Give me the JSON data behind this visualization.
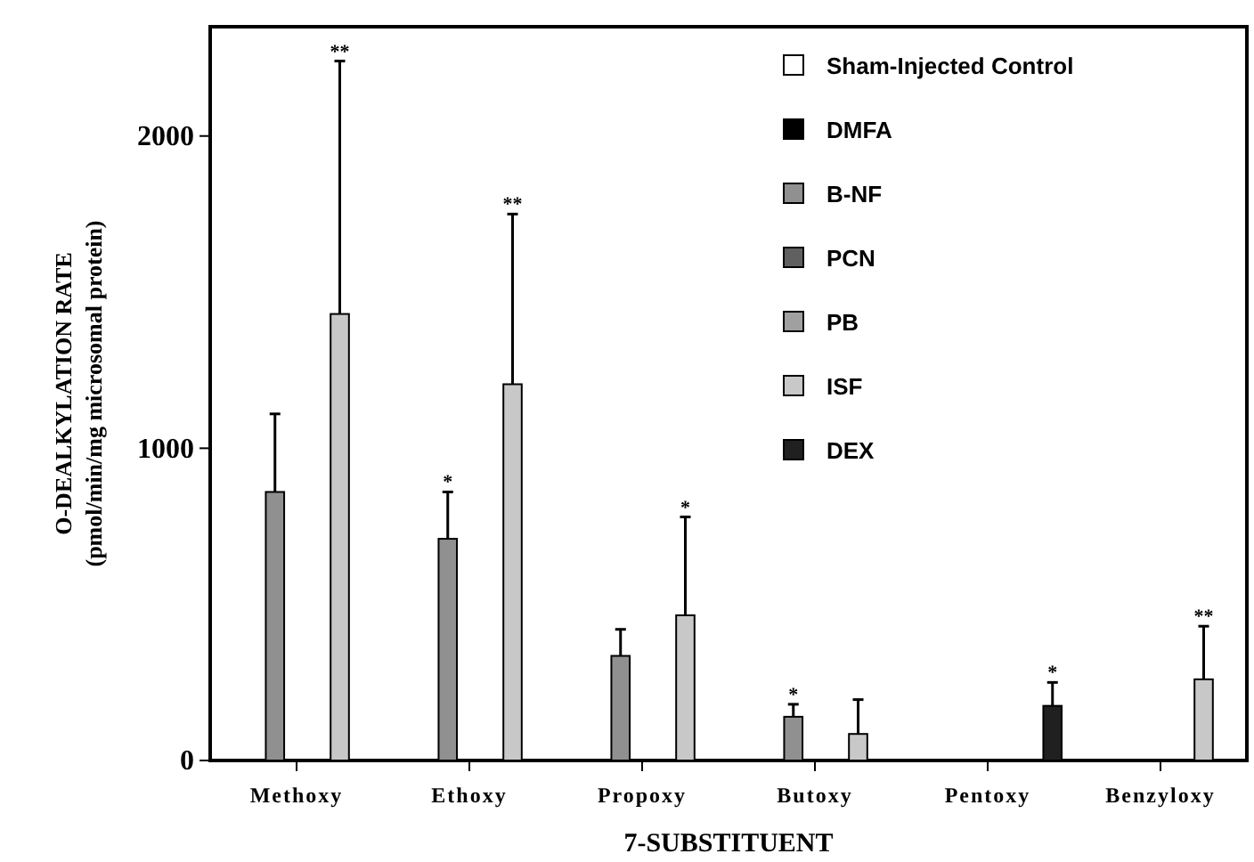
{
  "chart_data": {
    "type": "bar",
    "xlabel": "7-SUBSTITUENT",
    "ylabel": "O-DEALKYLATION RATE\n(pmol/min/mg microsomal protein)",
    "categories": [
      "Methoxy",
      "Ethoxy",
      "Propoxy",
      "Butoxy",
      "Pentoxy",
      "Benzyloxy"
    ],
    "series": [
      {
        "name": "Sham-Injected Control",
        "color": "#ffffff",
        "values": [
          0,
          0,
          0,
          0,
          0,
          0
        ]
      },
      {
        "name": "DMFA",
        "color": "#000000",
        "values": [
          0,
          0,
          0,
          0,
          0,
          0
        ]
      },
      {
        "name": "B-NF",
        "color": "#909090",
        "values": [
          860,
          710,
          335,
          140,
          0,
          0
        ],
        "errors": [
          [
            860,
            1110
          ],
          [
            710,
            860
          ],
          [
            335,
            420
          ],
          [
            140,
            180
          ],
          null,
          null
        ]
      },
      {
        "name": "PCN",
        "color": "#606060",
        "values": [
          0,
          0,
          0,
          0,
          0,
          0
        ]
      },
      {
        "name": "PB",
        "color": "#a0a0a0",
        "values": [
          0,
          0,
          0,
          0,
          0,
          0
        ]
      },
      {
        "name": "ISF",
        "color": "#c8c8c8",
        "values": [
          1430,
          1205,
          465,
          85,
          0,
          260
        ],
        "errors": [
          [
            1430,
            2240
          ],
          [
            1205,
            1750
          ],
          [
            465,
            780
          ],
          [
            85,
            195
          ],
          null,
          [
            260,
            430
          ]
        ]
      },
      {
        "name": "DEX",
        "color": "#202020",
        "values": [
          0,
          0,
          0,
          0,
          175,
          0
        ],
        "errors": [
          null,
          null,
          null,
          null,
          [
            175,
            250
          ],
          null
        ]
      }
    ],
    "ylim": [
      0,
      2350
    ],
    "yticks": [
      0,
      1000,
      2000
    ],
    "legend": "top right",
    "annotations": [
      "**",
      "*",
      "**",
      "*",
      "*",
      "*",
      "**"
    ]
  }
}
